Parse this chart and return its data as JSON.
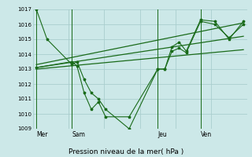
{
  "title": "Pression niveau de la mer( hPa )",
  "bg_color": "#cce8e8",
  "grid_color": "#aacece",
  "line_color": "#1a6b1a",
  "ylim": [
    1009,
    1017
  ],
  "yticks": [
    1009,
    1010,
    1011,
    1012,
    1013,
    1014,
    1015,
    1016,
    1017
  ],
  "day_labels": [
    "Mer",
    "Sam",
    "Jeu",
    "Ven"
  ],
  "day_positions": [
    0.5,
    5.5,
    17.5,
    23.5
  ],
  "xlim": [
    0,
    30
  ],
  "series1_x": [
    0.5,
    2.0,
    5.5,
    6.2,
    7.2,
    8.2,
    9.2,
    10.2,
    13.5,
    17.5,
    18.5,
    19.5,
    20.5,
    21.5,
    23.5,
    25.5,
    27.5,
    29.5
  ],
  "series1_y": [
    1017.0,
    1015.0,
    1013.3,
    1013.5,
    1012.3,
    1011.4,
    1011.0,
    1010.3,
    1009.0,
    1013.0,
    1013.0,
    1014.5,
    1014.8,
    1014.2,
    1016.3,
    1016.2,
    1015.0,
    1016.2
  ],
  "series2_x": [
    0.5,
    5.5,
    6.2,
    7.2,
    8.2,
    9.2,
    10.2,
    13.5,
    17.5,
    18.5,
    19.5,
    20.5,
    21.5,
    23.5,
    25.5,
    27.5,
    29.5
  ],
  "series2_y": [
    1013.1,
    1013.5,
    1013.2,
    1011.4,
    1010.3,
    1010.8,
    1009.8,
    1009.8,
    1013.0,
    1013.0,
    1014.2,
    1014.4,
    1014.1,
    1016.2,
    1016.0,
    1015.1,
    1016.0
  ],
  "trend1_x": [
    0.5,
    29.5
  ],
  "trend1_y": [
    1013.1,
    1015.2
  ],
  "trend2_x": [
    0.5,
    29.5
  ],
  "trend2_y": [
    1013.3,
    1016.1
  ],
  "trend3_x": [
    0.5,
    29.5
  ],
  "trend3_y": [
    1013.0,
    1014.3
  ]
}
